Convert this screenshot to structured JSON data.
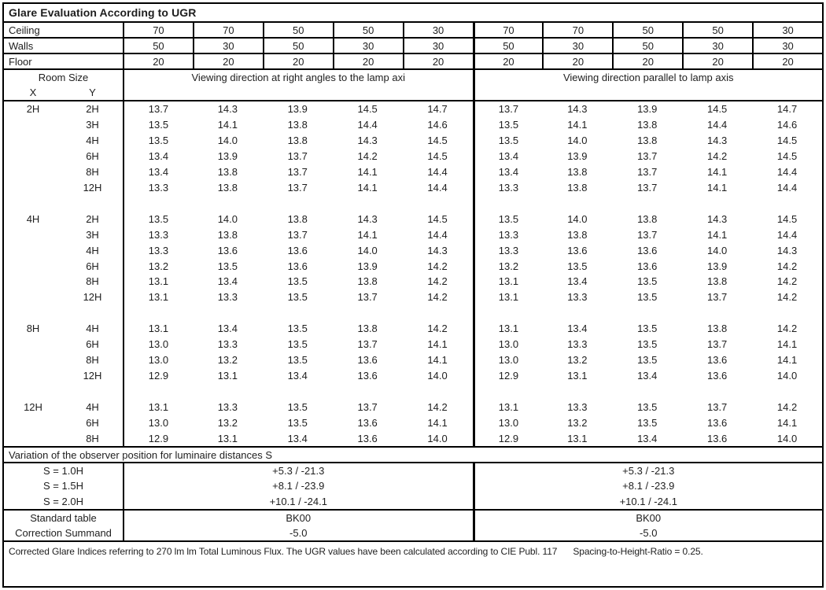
{
  "title": "Glare Evaluation According to UGR",
  "reflectances": {
    "rows": [
      {
        "label": "Ceiling",
        "values": [
          "70",
          "70",
          "50",
          "50",
          "30",
          "70",
          "70",
          "50",
          "50",
          "30"
        ]
      },
      {
        "label": "Walls",
        "values": [
          "50",
          "30",
          "50",
          "30",
          "30",
          "50",
          "30",
          "50",
          "30",
          "30"
        ]
      },
      {
        "label": "Floor",
        "values": [
          "20",
          "20",
          "20",
          "20",
          "20",
          "20",
          "20",
          "20",
          "20",
          "20"
        ]
      }
    ]
  },
  "header": {
    "room_size_label": "Room Size",
    "x_label": "X",
    "y_label": "Y",
    "left_heading": "Viewing direction at right angles to the lamp axi",
    "right_heading": "Viewing direction parallel to lamp axis"
  },
  "ugr": {
    "blocks": [
      {
        "x": "2H",
        "rows": [
          {
            "y": "2H",
            "values": [
              "13.7",
              "14.3",
              "13.9",
              "14.5",
              "14.7",
              "13.7",
              "14.3",
              "13.9",
              "14.5",
              "14.7"
            ]
          },
          {
            "y": "3H",
            "values": [
              "13.5",
              "14.1",
              "13.8",
              "14.4",
              "14.6",
              "13.5",
              "14.1",
              "13.8",
              "14.4",
              "14.6"
            ]
          },
          {
            "y": "4H",
            "values": [
              "13.5",
              "14.0",
              "13.8",
              "14.3",
              "14.5",
              "13.5",
              "14.0",
              "13.8",
              "14.3",
              "14.5"
            ]
          },
          {
            "y": "6H",
            "values": [
              "13.4",
              "13.9",
              "13.7",
              "14.2",
              "14.5",
              "13.4",
              "13.9",
              "13.7",
              "14.2",
              "14.5"
            ]
          },
          {
            "y": "8H",
            "values": [
              "13.4",
              "13.8",
              "13.7",
              "14.1",
              "14.4",
              "13.4",
              "13.8",
              "13.7",
              "14.1",
              "14.4"
            ]
          },
          {
            "y": "12H",
            "values": [
              "13.3",
              "13.8",
              "13.7",
              "14.1",
              "14.4",
              "13.3",
              "13.8",
              "13.7",
              "14.1",
              "14.4"
            ]
          }
        ]
      },
      {
        "x": "4H",
        "rows": [
          {
            "y": "2H",
            "values": [
              "13.5",
              "14.0",
              "13.8",
              "14.3",
              "14.5",
              "13.5",
              "14.0",
              "13.8",
              "14.3",
              "14.5"
            ]
          },
          {
            "y": "3H",
            "values": [
              "13.3",
              "13.8",
              "13.7",
              "14.1",
              "14.4",
              "13.3",
              "13.8",
              "13.7",
              "14.1",
              "14.4"
            ]
          },
          {
            "y": "4H",
            "values": [
              "13.3",
              "13.6",
              "13.6",
              "14.0",
              "14.3",
              "13.3",
              "13.6",
              "13.6",
              "14.0",
              "14.3"
            ]
          },
          {
            "y": "6H",
            "values": [
              "13.2",
              "13.5",
              "13.6",
              "13.9",
              "14.2",
              "13.2",
              "13.5",
              "13.6",
              "13.9",
              "14.2"
            ]
          },
          {
            "y": "8H",
            "values": [
              "13.1",
              "13.4",
              "13.5",
              "13.8",
              "14.2",
              "13.1",
              "13.4",
              "13.5",
              "13.8",
              "14.2"
            ]
          },
          {
            "y": "12H",
            "values": [
              "13.1",
              "13.3",
              "13.5",
              "13.7",
              "14.2",
              "13.1",
              "13.3",
              "13.5",
              "13.7",
              "14.2"
            ]
          }
        ]
      },
      {
        "x": "8H",
        "rows": [
          {
            "y": "4H",
            "values": [
              "13.1",
              "13.4",
              "13.5",
              "13.8",
              "14.2",
              "13.1",
              "13.4",
              "13.5",
              "13.8",
              "14.2"
            ]
          },
          {
            "y": "6H",
            "values": [
              "13.0",
              "13.3",
              "13.5",
              "13.7",
              "14.1",
              "13.0",
              "13.3",
              "13.5",
              "13.7",
              "14.1"
            ]
          },
          {
            "y": "8H",
            "values": [
              "13.0",
              "13.2",
              "13.5",
              "13.6",
              "14.1",
              "13.0",
              "13.2",
              "13.5",
              "13.6",
              "14.1"
            ]
          },
          {
            "y": "12H",
            "values": [
              "12.9",
              "13.1",
              "13.4",
              "13.6",
              "14.0",
              "12.9",
              "13.1",
              "13.4",
              "13.6",
              "14.0"
            ]
          }
        ]
      },
      {
        "x": "12H",
        "rows": [
          {
            "y": "4H",
            "values": [
              "13.1",
              "13.3",
              "13.5",
              "13.7",
              "14.2",
              "13.1",
              "13.3",
              "13.5",
              "13.7",
              "14.2"
            ]
          },
          {
            "y": "6H",
            "values": [
              "13.0",
              "13.2",
              "13.5",
              "13.6",
              "14.1",
              "13.0",
              "13.2",
              "13.5",
              "13.6",
              "14.1"
            ]
          },
          {
            "y": "8H",
            "values": [
              "12.9",
              "13.1",
              "13.4",
              "13.6",
              "14.0",
              "12.9",
              "13.1",
              "13.4",
              "13.6",
              "14.0"
            ]
          }
        ]
      }
    ]
  },
  "variation": {
    "heading": "Variation of the observer position for luminaire distances S",
    "rows": [
      {
        "label": "S = 1.0H",
        "left": "+5.3 / -21.3",
        "right": "+5.3 / -21.3"
      },
      {
        "label": "S = 1.5H",
        "left": "+8.1 / -23.9",
        "right": "+8.1 / -23.9"
      },
      {
        "label": "S = 2.0H",
        "left": "+10.1 / -24.1",
        "right": "+10.1 / -24.1"
      }
    ]
  },
  "summary": {
    "rows": [
      {
        "label": "Standard table",
        "left": "BK00",
        "right": "BK00"
      },
      {
        "label": "Correction Summand",
        "left": "-5.0",
        "right": "-5.0"
      }
    ]
  },
  "footer": {
    "text": "Corrected Glare Indices referring to 270 lm lm Total Luminous Flux. The UGR values have been calculated according to CIE Publ. 117",
    "ratio": "Spacing-to-Height-Ratio = 0.25."
  }
}
